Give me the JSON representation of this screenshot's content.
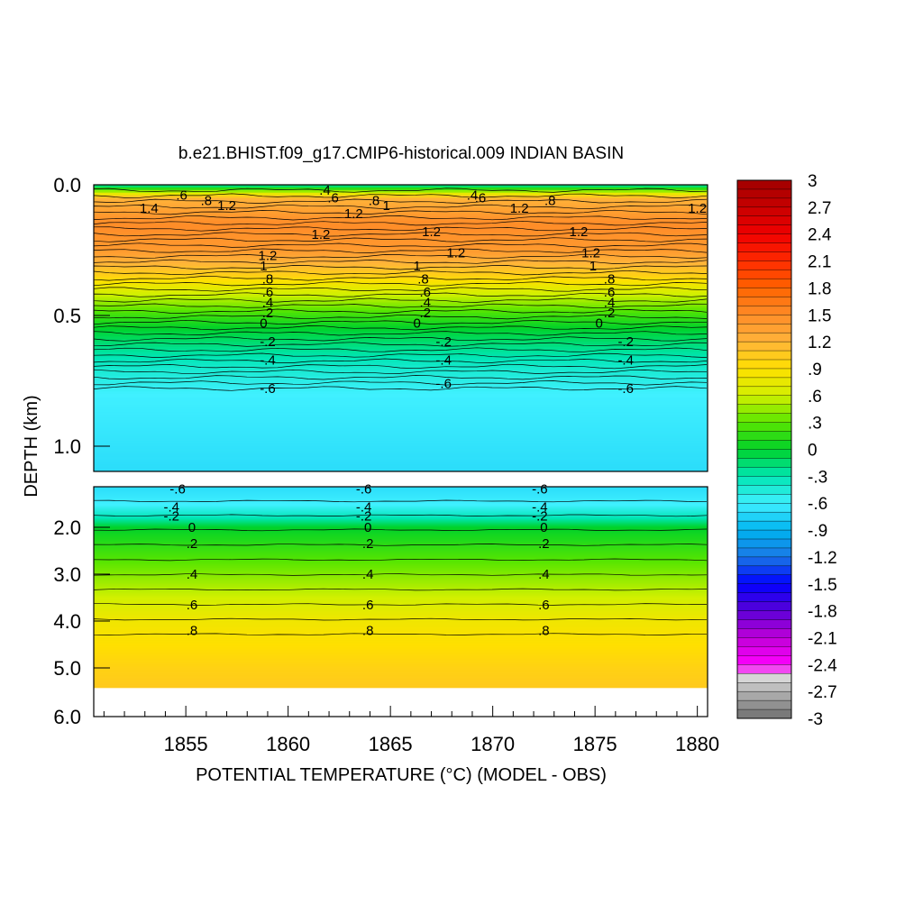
{
  "chart_data": {
    "type": "heatmap",
    "title": "b.e21.BHIST.f09_g17.CMIP6-historical.009 INDIAN BASIN",
    "xlabel": "POTENTIAL TEMPERATURE (°C) (MODEL - OBS)",
    "ylabel": "DEPTH (km)",
    "x_range": [
      1850.5,
      1880.5
    ],
    "x_ticks": [
      "1855",
      "1860",
      "1865",
      "1870",
      "1875",
      "1880"
    ],
    "y_ticks_upper": [
      "0.0",
      "0.5",
      "1.0"
    ],
    "y_ticks_lower": [
      "2.0",
      "3.0",
      "4.0",
      "5.0",
      "6.0"
    ],
    "upper_panel_depth_km": [
      0,
      1.1
    ],
    "lower_panel_depth_km": [
      1.1,
      6.0
    ],
    "colorbar": {
      "labels": [
        "3",
        "2.7",
        "2.4",
        "2.1",
        "1.8",
        "1.5",
        "1.2",
        ".9",
        ".6",
        ".3",
        "0",
        "-.3",
        "-.6",
        "-.9",
        "-1.2",
        "-1.5",
        "-1.8",
        "-2.1",
        "-2.4",
        "-2.7",
        "-3"
      ],
      "range": [
        -3,
        3
      ]
    },
    "profile": [
      {
        "depth_km": 0.0,
        "value": -0.3
      },
      {
        "depth_km": 0.05,
        "value": 1.2
      },
      {
        "depth_km": 0.15,
        "value": 1.5
      },
      {
        "depth_km": 0.25,
        "value": 1.4
      },
      {
        "depth_km": 0.3,
        "value": 1.2
      },
      {
        "depth_km": 0.35,
        "value": 1.0
      },
      {
        "depth_km": 0.4,
        "value": 0.7
      },
      {
        "depth_km": 0.45,
        "value": 0.45
      },
      {
        "depth_km": 0.5,
        "value": 0.2
      },
      {
        "depth_km": 0.55,
        "value": 0.0
      },
      {
        "depth_km": 0.62,
        "value": -0.2
      },
      {
        "depth_km": 0.7,
        "value": -0.4
      },
      {
        "depth_km": 0.8,
        "value": -0.6
      },
      {
        "depth_km": 1.1,
        "value": -0.7
      },
      {
        "depth_km": 1.5,
        "value": -0.6
      },
      {
        "depth_km": 1.8,
        "value": -0.3
      },
      {
        "depth_km": 2.0,
        "value": 0.0
      },
      {
        "depth_km": 2.5,
        "value": 0.2
      },
      {
        "depth_km": 3.0,
        "value": 0.4
      },
      {
        "depth_km": 3.5,
        "value": 0.6
      },
      {
        "depth_km": 4.0,
        "value": 0.8
      },
      {
        "depth_km": 5.0,
        "value": 1.0
      },
      {
        "depth_km": 5.4,
        "value": 1.05
      }
    ],
    "contour_labels_upper": [
      {
        "text": ".6",
        "year": 1854.8,
        "depth_km": 0.04
      },
      {
        "text": "1.4",
        "year": 1853.2,
        "depth_km": 0.09
      },
      {
        "text": ".8",
        "year": 1856.0,
        "depth_km": 0.06
      },
      {
        "text": "1.2",
        "year": 1857.0,
        "depth_km": 0.08
      },
      {
        "text": ".4",
        "year": 1861.8,
        "depth_km": 0.02
      },
      {
        "text": ".6",
        "year": 1862.2,
        "depth_km": 0.05
      },
      {
        "text": ".8",
        "year": 1864.2,
        "depth_km": 0.06
      },
      {
        "text": "1",
        "year": 1864.8,
        "depth_km": 0.08
      },
      {
        "text": "1.2",
        "year": 1863.2,
        "depth_km": 0.11
      },
      {
        "text": "1.2",
        "year": 1861.6,
        "depth_km": 0.19
      },
      {
        "text": "1.2",
        "year": 1867.0,
        "depth_km": 0.18
      },
      {
        "text": ".4",
        "year": 1869.0,
        "depth_km": 0.04
      },
      {
        "text": ".6",
        "year": 1869.4,
        "depth_km": 0.05
      },
      {
        "text": "1.2",
        "year": 1871.3,
        "depth_km": 0.09
      },
      {
        "text": ".8",
        "year": 1872.8,
        "depth_km": 0.06
      },
      {
        "text": "1.2",
        "year": 1874.2,
        "depth_km": 0.18
      },
      {
        "text": "1.2",
        "year": 1880.0,
        "depth_km": 0.09
      },
      {
        "text": "1.2",
        "year": 1859.0,
        "depth_km": 0.27
      },
      {
        "text": "1",
        "year": 1858.8,
        "depth_km": 0.31
      },
      {
        "text": ".8",
        "year": 1859.0,
        "depth_km": 0.36
      },
      {
        "text": ".6",
        "year": 1859.0,
        "depth_km": 0.41
      },
      {
        "text": ".4",
        "year": 1859.0,
        "depth_km": 0.45
      },
      {
        "text": ".2",
        "year": 1859.0,
        "depth_km": 0.49
      },
      {
        "text": "0",
        "year": 1858.8,
        "depth_km": 0.53
      },
      {
        "text": "-.2",
        "year": 1859.0,
        "depth_km": 0.6
      },
      {
        "text": "-.4",
        "year": 1859.0,
        "depth_km": 0.67
      },
      {
        "text": "-.6",
        "year": 1859.0,
        "depth_km": 0.78
      },
      {
        "text": "1.2",
        "year": 1868.2,
        "depth_km": 0.26
      },
      {
        "text": "1",
        "year": 1866.3,
        "depth_km": 0.31
      },
      {
        "text": ".8",
        "year": 1866.6,
        "depth_km": 0.36
      },
      {
        "text": ".6",
        "year": 1866.7,
        "depth_km": 0.41
      },
      {
        "text": ".4",
        "year": 1866.7,
        "depth_km": 0.45
      },
      {
        "text": ".2",
        "year": 1866.7,
        "depth_km": 0.49
      },
      {
        "text": "0",
        "year": 1866.3,
        "depth_km": 0.53
      },
      {
        "text": "-.2",
        "year": 1867.6,
        "depth_km": 0.6
      },
      {
        "text": "-.4",
        "year": 1867.6,
        "depth_km": 0.67
      },
      {
        "text": "-.6",
        "year": 1867.6,
        "depth_km": 0.76
      },
      {
        "text": "1.2",
        "year": 1874.8,
        "depth_km": 0.26
      },
      {
        "text": "1",
        "year": 1874.9,
        "depth_km": 0.31
      },
      {
        "text": ".8",
        "year": 1875.7,
        "depth_km": 0.36
      },
      {
        "text": ".6",
        "year": 1875.7,
        "depth_km": 0.41
      },
      {
        "text": ".4",
        "year": 1875.7,
        "depth_km": 0.45
      },
      {
        "text": ".2",
        "year": 1875.7,
        "depth_km": 0.49
      },
      {
        "text": "0",
        "year": 1875.2,
        "depth_km": 0.53
      },
      {
        "text": "-.2",
        "year": 1876.5,
        "depth_km": 0.6
      },
      {
        "text": "-.4",
        "year": 1876.5,
        "depth_km": 0.67
      },
      {
        "text": "-.6",
        "year": 1876.5,
        "depth_km": 0.78
      }
    ],
    "contour_labels_lower": [
      {
        "text": "-.6",
        "year": 1854.6,
        "depth_km": 1.15
      },
      {
        "text": "-.4",
        "year": 1854.3,
        "depth_km": 1.55
      },
      {
        "text": "-.2",
        "year": 1854.3,
        "depth_km": 1.75
      },
      {
        "text": "0",
        "year": 1855.3,
        "depth_km": 2.0
      },
      {
        "text": ".2",
        "year": 1855.3,
        "depth_km": 2.35
      },
      {
        "text": ".4",
        "year": 1855.3,
        "depth_km": 3.0
      },
      {
        "text": ".6",
        "year": 1855.3,
        "depth_km": 3.65
      },
      {
        "text": ".8",
        "year": 1855.3,
        "depth_km": 4.2
      },
      {
        "text": "-.6",
        "year": 1863.7,
        "depth_km": 1.15
      },
      {
        "text": "-.4",
        "year": 1863.7,
        "depth_km": 1.55
      },
      {
        "text": "-.2",
        "year": 1863.7,
        "depth_km": 1.75
      },
      {
        "text": "0",
        "year": 1863.9,
        "depth_km": 2.0
      },
      {
        "text": ".2",
        "year": 1863.9,
        "depth_km": 2.35
      },
      {
        "text": ".4",
        "year": 1863.9,
        "depth_km": 3.0
      },
      {
        "text": ".6",
        "year": 1863.9,
        "depth_km": 3.65
      },
      {
        "text": ".8",
        "year": 1863.9,
        "depth_km": 4.2
      },
      {
        "text": "-.6",
        "year": 1872.3,
        "depth_km": 1.15
      },
      {
        "text": "-.4",
        "year": 1872.3,
        "depth_km": 1.55
      },
      {
        "text": "-.2",
        "year": 1872.3,
        "depth_km": 1.75
      },
      {
        "text": "0",
        "year": 1872.5,
        "depth_km": 2.0
      },
      {
        "text": ".2",
        "year": 1872.5,
        "depth_km": 2.35
      },
      {
        "text": ".4",
        "year": 1872.5,
        "depth_km": 3.0
      },
      {
        "text": ".6",
        "year": 1872.5,
        "depth_km": 3.65
      },
      {
        "text": ".8",
        "year": 1872.5,
        "depth_km": 4.2
      }
    ]
  }
}
